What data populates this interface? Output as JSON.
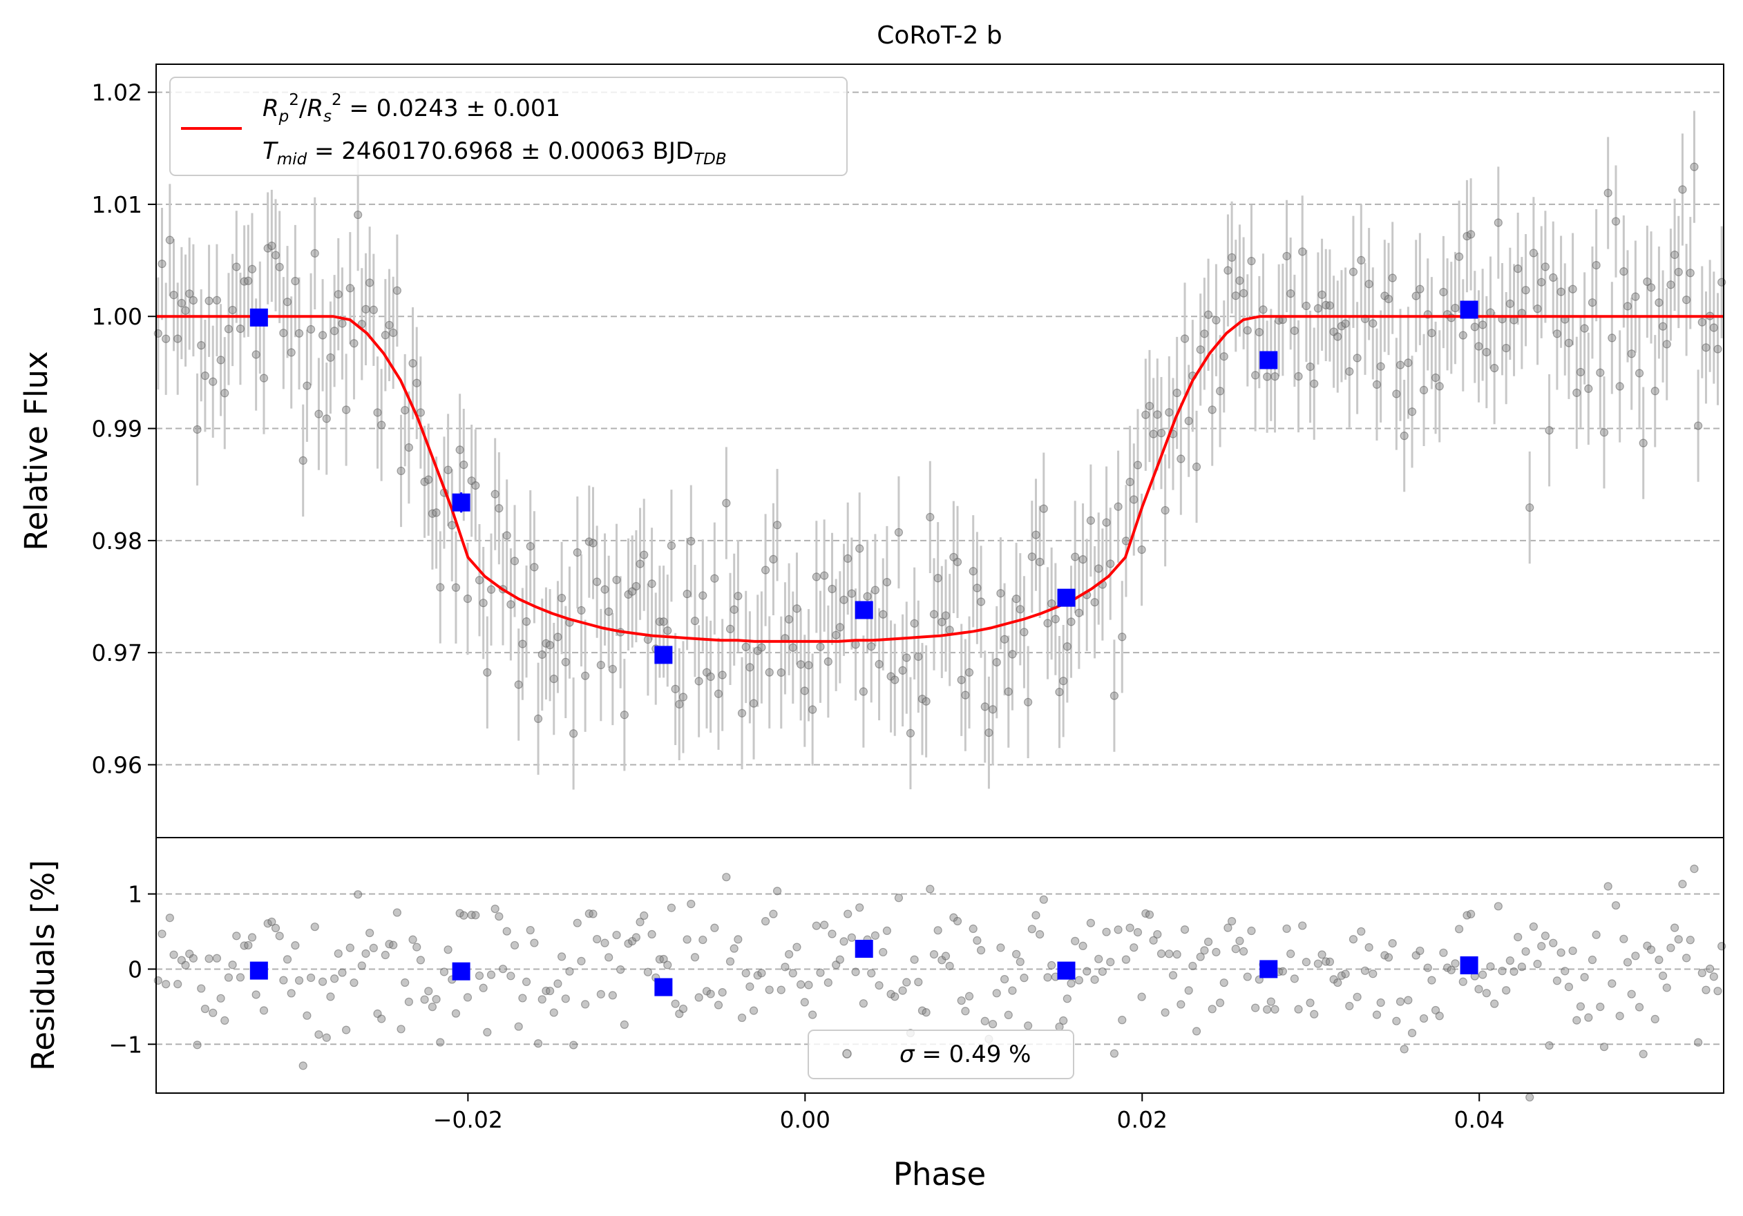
{
  "chart_data": [
    {
      "panel": "top",
      "type": "scatter",
      "title": "CoRoT-2 b",
      "xlabel": "",
      "ylabel": "Relative Flux",
      "xlim": [
        -0.0385,
        0.0545
      ],
      "ylim": [
        0.9535,
        1.0225
      ],
      "yticks": [
        0.96,
        0.97,
        0.98,
        0.99,
        1.0,
        1.01,
        1.02
      ],
      "ytick_labels": [
        "0.96",
        "0.97",
        "0.98",
        "0.99",
        "1.00",
        "1.01",
        "1.02"
      ],
      "grid": "y-dashed",
      "legend_placement": "top-left",
      "legend": {
        "rp_main": "R",
        "rp_sub": "p",
        "rp_sup": "2",
        "slash": "/",
        "rs_main": "R",
        "rs_sub": "s",
        "rs_sup": "2",
        "rp_value": " = 0.0243 ± 0.001",
        "t_main": "T",
        "t_sub": "mid",
        "t_value": " = 2460170.6968 ± 0.00063 BJD",
        "t_unit_sub": "TDB"
      },
      "model": {
        "name": "transit model",
        "color": "#ff0000",
        "x": [
          -0.0385,
          -0.028,
          -0.027,
          -0.026,
          -0.025,
          -0.024,
          -0.023,
          -0.022,
          -0.021,
          -0.02,
          -0.019,
          -0.018,
          -0.017,
          -0.016,
          -0.015,
          -0.014,
          -0.013,
          -0.012,
          -0.011,
          -0.01,
          -0.009,
          -0.008,
          -0.007,
          -0.006,
          -0.005,
          -0.004,
          -0.003,
          -0.002,
          -0.001,
          0.0,
          0.001,
          0.002,
          0.003,
          0.004,
          0.005,
          0.006,
          0.007,
          0.008,
          0.009,
          0.01,
          0.011,
          0.012,
          0.013,
          0.014,
          0.015,
          0.016,
          0.017,
          0.018,
          0.019,
          0.02,
          0.021,
          0.022,
          0.023,
          0.024,
          0.025,
          0.026,
          0.027,
          0.028,
          0.029,
          0.0545
        ],
        "y": [
          1.0,
          1.0,
          0.9997,
          0.9985,
          0.9967,
          0.9943,
          0.991,
          0.987,
          0.983,
          0.9785,
          0.9768,
          0.9757,
          0.9748,
          0.9741,
          0.9735,
          0.973,
          0.9726,
          0.9722,
          0.9719,
          0.9717,
          0.9715,
          0.9714,
          0.9713,
          0.9712,
          0.9711,
          0.9711,
          0.971,
          0.971,
          0.971,
          0.971,
          0.971,
          0.971,
          0.9711,
          0.9711,
          0.9712,
          0.9713,
          0.9714,
          0.9715,
          0.9717,
          0.9719,
          0.9722,
          0.9726,
          0.973,
          0.9735,
          0.9741,
          0.9748,
          0.9757,
          0.9768,
          0.9785,
          0.983,
          0.987,
          0.991,
          0.9943,
          0.9967,
          0.9985,
          0.9997,
          1.0,
          1.0,
          1.0,
          1.0
        ]
      },
      "binned": {
        "name": "binned data",
        "color": "#0000ff",
        "x": [
          -0.0324,
          -0.0204,
          -0.0084,
          0.0035,
          0.0155,
          0.0275,
          0.0394
        ],
        "y": [
          0.9999,
          0.9834,
          0.9698,
          0.9738,
          0.9749,
          0.9961,
          1.0006
        ],
        "yerr": [
          0.0006,
          0.0009,
          0.0006,
          0.0006,
          0.0006,
          0.0006,
          0.0006
        ]
      },
      "raw_scatter": {
        "name": "unbinned data",
        "color": "#808080",
        "error_color": "#c8c8c8",
        "n_points": 400,
        "typical_yerr": 0.005,
        "note": "Unbinned points scatter with sigma ≈ 0.49% around the transit model"
      }
    },
    {
      "panel": "bottom",
      "type": "scatter",
      "xlabel": "Phase",
      "ylabel": "Residuals [%]",
      "xlim": [
        -0.0385,
        0.0545
      ],
      "ylim": [
        -1.65,
        1.75
      ],
      "xticks": [
        -0.02,
        0.0,
        0.02,
        0.04
      ],
      "xtick_labels": [
        "−0.02",
        "0.00",
        "0.02",
        "0.04"
      ],
      "yticks": [
        -1,
        0,
        1
      ],
      "ytick_labels": [
        "−1",
        "0",
        "1"
      ],
      "grid": "y-dashed",
      "legend_placement": "bottom-center",
      "legend": {
        "sigma_symbol": "σ",
        "sigma_text": " = 0.49 %"
      },
      "binned": {
        "name": "binned residuals",
        "color": "#0000ff",
        "x": [
          -0.0324,
          -0.0204,
          -0.0084,
          0.0035,
          0.0155,
          0.0275,
          0.0394
        ],
        "y": [
          -0.02,
          -0.03,
          -0.24,
          0.27,
          -0.02,
          0.0,
          0.05
        ]
      },
      "raw_scatter": {
        "name": "unbinned residuals",
        "color": "#808080",
        "n_points": 400,
        "sigma_percent": 0.49
      }
    }
  ]
}
